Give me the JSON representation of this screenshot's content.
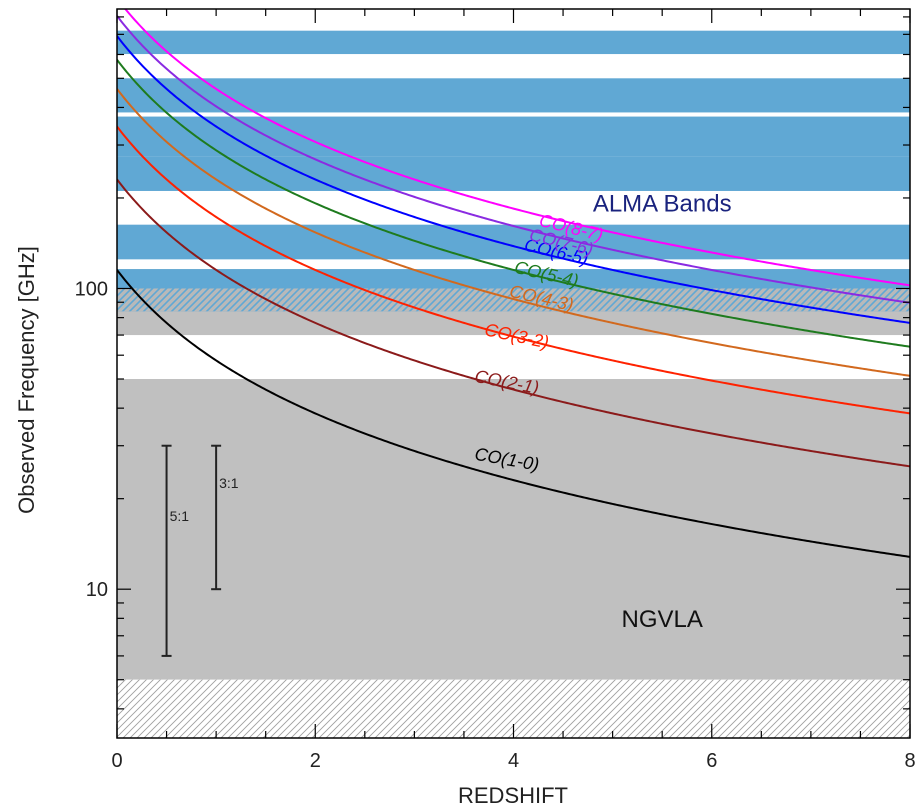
{
  "chart_data": {
    "type": "line",
    "xlabel": "REDSHIFT",
    "ylabel": "Observed Frequency [GHz]",
    "xlim": [
      0,
      8
    ],
    "ylim": [
      3.2,
      850
    ],
    "yscale": "log",
    "x_ticks": [
      0,
      2,
      4,
      6,
      8
    ],
    "y_ticks_labeled": [
      10,
      100
    ],
    "grid": false,
    "regions": [
      {
        "name": "ALMA Bands",
        "color": "#60a8d4",
        "ranges": [
          [
            84,
            116
          ],
          [
            125,
            163
          ],
          [
            211,
            275
          ],
          [
            275,
            373
          ],
          [
            385,
            500
          ],
          [
            602,
            720
          ]
        ]
      },
      {
        "name": "NGVLA",
        "color": "#c0c0c0",
        "ranges": [
          [
            5,
            50
          ],
          [
            70,
            116
          ]
        ]
      },
      {
        "name": "hatched",
        "color": "#9a9a9a",
        "ranges": [
          [
            3.2,
            5
          ],
          [
            84,
            100
          ]
        ]
      }
    ],
    "region_labels": [
      {
        "text": "ALMA Bands",
        "x": 5.5,
        "y": 180,
        "color": "#1a237e"
      },
      {
        "text": "NGVLA",
        "x": 5.5,
        "y": 7.5,
        "color": "#111111"
      }
    ],
    "series": [
      {
        "name": "CO(1-0)",
        "rest_freq": 115.271,
        "color": "#000000",
        "label_x": 3.6,
        "label_y": 27,
        "label_angle": 10
      },
      {
        "name": "CO(2-1)",
        "rest_freq": 230.538,
        "color": "#8b1a1a",
        "label_x": 3.6,
        "label_y": 49,
        "label_angle": 11
      },
      {
        "name": "CO(3-2)",
        "rest_freq": 345.796,
        "color": "#ff2200",
        "label_x": 3.7,
        "label_y": 70,
        "label_angle": 12
      },
      {
        "name": "CO(4-3)",
        "rest_freq": 461.041,
        "color": "#d2691e",
        "label_x": 3.95,
        "label_y": 94,
        "label_angle": 13
      },
      {
        "name": "CO(5-4)",
        "rest_freq": 576.268,
        "color": "#1e7b1e",
        "label_x": 4.0,
        "label_y": 113,
        "label_angle": 13
      },
      {
        "name": "CO(6-5)",
        "rest_freq": 691.473,
        "color": "#0000ff",
        "label_x": 4.1,
        "label_y": 134,
        "label_angle": 13
      },
      {
        "name": "CO(7-6)",
        "rest_freq": 806.652,
        "color": "#8a2be2",
        "label_x": 4.15,
        "label_y": 145,
        "label_angle": 14
      },
      {
        "name": "CO(8-7)",
        "rest_freq": 921.8,
        "color": "#ff00ff",
        "label_x": 4.25,
        "label_y": 162,
        "label_angle": 14
      }
    ],
    "ratio_bars": [
      {
        "text": "5:1",
        "x": 0.5,
        "y_low": 6,
        "y_high": 30
      },
      {
        "text": "3:1",
        "x": 1.0,
        "y_low": 10,
        "y_high": 30
      }
    ]
  }
}
